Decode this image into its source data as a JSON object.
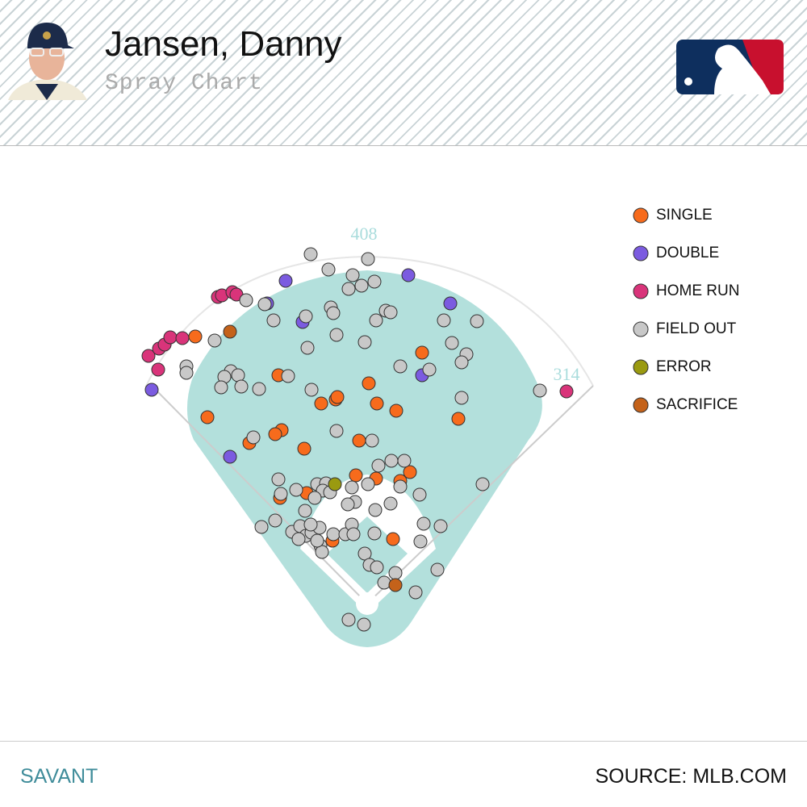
{
  "header": {
    "title": "Jansen, Danny",
    "subtitle": "Spray Chart"
  },
  "footer": {
    "left": "SAVANT",
    "right": "SOURCE: MLB.COM"
  },
  "chart_data": {
    "type": "scatter",
    "fence_distances": {
      "center": 408,
      "right": 314
    },
    "series": [
      {
        "name": "SINGLE",
        "color": "#f76b1c",
        "x": [
          -213,
          -198,
          -110,
          -106,
          -114,
          -146,
          -78,
          -57,
          -39,
          -37,
          -10,
          12,
          2,
          36,
          68,
          113,
          -14,
          11,
          41,
          53,
          -75,
          -108,
          32,
          -43
        ],
        "values": [
          331,
          231,
          283,
          215,
          210,
          199,
          192,
          248,
          253,
          256,
          202,
          248,
          273,
          239,
          311,
          229,
          159,
          155,
          152,
          163,
          137,
          131,
          80,
          78
        ]
      },
      {
        "name": "DOUBLE",
        "color": "#7b5be0",
        "x": [
          -267,
          -170,
          -101,
          -124,
          -80,
          51,
          103,
          68
        ],
        "values": [
          265,
          182,
          400,
          372,
          349,
          407,
          372,
          283
        ]
      },
      {
        "name": "HOME RUN",
        "color": "#d9347a",
        "x": [
          -271,
          -259,
          -258,
          -251,
          -244,
          -229,
          -185,
          -180,
          -167,
          -162,
          247
        ],
        "values": [
          307,
          290,
          316,
          321,
          330,
          329,
          380,
          382,
          386,
          383,
          263
        ]
      },
      {
        "name": "FIELD OUT",
        "color": "#c8c8c8",
        "x": [
          -70,
          -48,
          1,
          -18,
          -7,
          -23,
          9,
          -150,
          -127,
          -116,
          -76,
          -45,
          -42,
          -38,
          -3,
          11,
          23,
          29,
          95,
          136,
          105,
          123,
          117,
          77,
          41,
          -74,
          -189,
          -224,
          -224,
          -169,
          -160,
          -177,
          -181,
          -156,
          -134,
          -98,
          -69,
          117,
          214,
          -38,
          6,
          -141,
          -110,
          -62,
          -51,
          -55,
          -46,
          -88,
          -107,
          -65,
          -19,
          -15,
          -24,
          1,
          14,
          30,
          46,
          41,
          65,
          29,
          10,
          -77,
          -114,
          -131,
          -93,
          -83,
          -76,
          -69,
          -59,
          -58,
          -56,
          -42,
          -27,
          -19,
          -17,
          9,
          -3,
          3,
          12,
          35,
          21,
          60,
          87,
          66,
          70,
          91,
          143,
          -23,
          -4,
          -70,
          -85,
          -62
        ],
        "values": [
          433,
          414,
          427,
          407,
          394,
          390,
          399,
          376,
          371,
          351,
          356,
          367,
          360,
          333,
          324,
          351,
          363,
          361,
          351,
          350,
          323,
          309,
          299,
          290,
          294,
          317,
          326,
          294,
          286,
          288,
          283,
          281,
          268,
          269,
          266,
          282,
          265,
          255,
          264,
          214,
          202,
          206,
          154,
          148,
          149,
          140,
          138,
          141,
          136,
          131,
          144,
          126,
          123,
          148,
          171,
          177,
          177,
          145,
          135,
          124,
          116,
          115,
          103,
          95,
          89,
          96,
          84,
          88,
          94,
          72,
          64,
          86,
          86,
          98,
          86,
          87,
          62,
          48,
          45,
          38,
          26,
          14,
          42,
          77,
          99,
          96,
          148,
          -20,
          -26,
          98,
          80,
          78
        ]
      },
      {
        "name": "ERROR",
        "color": "#9a9a10",
        "x": [
          -40
        ],
        "values": [
          148
        ]
      },
      {
        "name": "SACRIFICE",
        "color": "#c4621a",
        "x": [
          -170,
          35
        ],
        "values": [
          337,
          23
        ]
      }
    ]
  }
}
